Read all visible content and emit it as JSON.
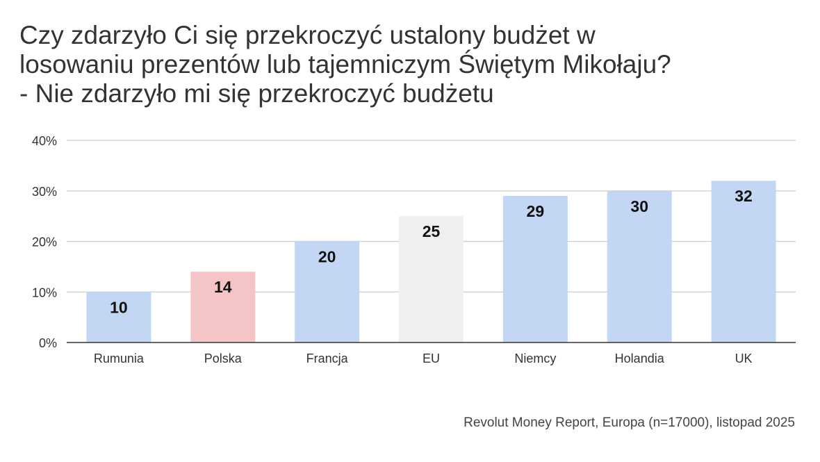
{
  "title_lines": [
    "Czy zdarzyło Ci się przekroczyć ustalony budżet w",
    "losowaniu prezentów lub tajemniczym Świętym Mikołaju?",
    "- Nie zdarzyło mi się przekroczyć budżetu"
  ],
  "source": "Revolut Money Report, Europa (n=17000), listopad 2025",
  "colors": {
    "default_bar": "#c3d7f5",
    "Polska": "#f4c4c6",
    "EU": "#efefef",
    "grid": "#cccccc",
    "axis": "#333333",
    "label": "#111111"
  },
  "chart_data": {
    "type": "bar",
    "title": "Czy zdarzyło Ci się przekroczyć ustalony budżet w losowaniu prezentów lub tajemniczym Świętym Mikołaju? - Nie zdarzyło mi się przekroczyć budżetu",
    "categories": [
      "Rumunia",
      "Polska",
      "Francja",
      "EU",
      "Niemcy",
      "Holandia",
      "UK"
    ],
    "values": [
      10,
      14,
      20,
      25,
      29,
      30,
      32
    ],
    "data_labels": [
      "10",
      "14",
      "20",
      "25",
      "29",
      "30",
      "32"
    ],
    "ylim": [
      0,
      40
    ],
    "yticks": [
      0,
      10,
      20,
      30,
      40
    ],
    "ytick_labels": [
      "0%",
      "10%",
      "20%",
      "30%",
      "40%"
    ],
    "xlabel": "",
    "ylabel": "",
    "grid": true,
    "legend": "none"
  }
}
